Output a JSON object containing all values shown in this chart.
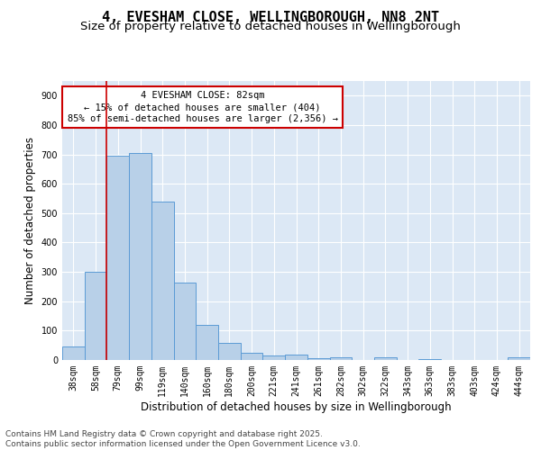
{
  "title_line1": "4, EVESHAM CLOSE, WELLINGBOROUGH, NN8 2NT",
  "title_line2": "Size of property relative to detached houses in Wellingborough",
  "xlabel": "Distribution of detached houses by size in Wellingborough",
  "ylabel": "Number of detached properties",
  "categories": [
    "38sqm",
    "58sqm",
    "79sqm",
    "99sqm",
    "119sqm",
    "140sqm",
    "160sqm",
    "180sqm",
    "200sqm",
    "221sqm",
    "241sqm",
    "261sqm",
    "282sqm",
    "302sqm",
    "322sqm",
    "343sqm",
    "363sqm",
    "383sqm",
    "403sqm",
    "424sqm",
    "444sqm"
  ],
  "values": [
    45,
    300,
    695,
    705,
    540,
    265,
    120,
    57,
    25,
    15,
    18,
    7,
    9,
    1,
    10,
    1,
    3,
    1,
    1,
    1,
    8
  ],
  "bar_color": "#b8d0e8",
  "bar_edge_color": "#5b9bd5",
  "vline_x": 1.5,
  "vline_color": "#cc0000",
  "annotation_line1": "4 EVESHAM CLOSE: 82sqm",
  "annotation_line2": "← 15% of detached houses are smaller (404)",
  "annotation_line3": "85% of semi-detached houses are larger (2,356) →",
  "annotation_box_color": "#ffffff",
  "annotation_box_edge_color": "#cc0000",
  "ylim": [
    0,
    950
  ],
  "yticks": [
    0,
    100,
    200,
    300,
    400,
    500,
    600,
    700,
    800,
    900
  ],
  "background_color": "#dce8f5",
  "grid_color": "#ffffff",
  "fig_bg_color": "#ffffff",
  "footer_text": "Contains HM Land Registry data © Crown copyright and database right 2025.\nContains public sector information licensed under the Open Government Licence v3.0.",
  "title_fontsize": 11,
  "subtitle_fontsize": 9.5,
  "axis_label_fontsize": 8.5,
  "tick_fontsize": 7,
  "annotation_fontsize": 7.5,
  "footer_fontsize": 6.5
}
